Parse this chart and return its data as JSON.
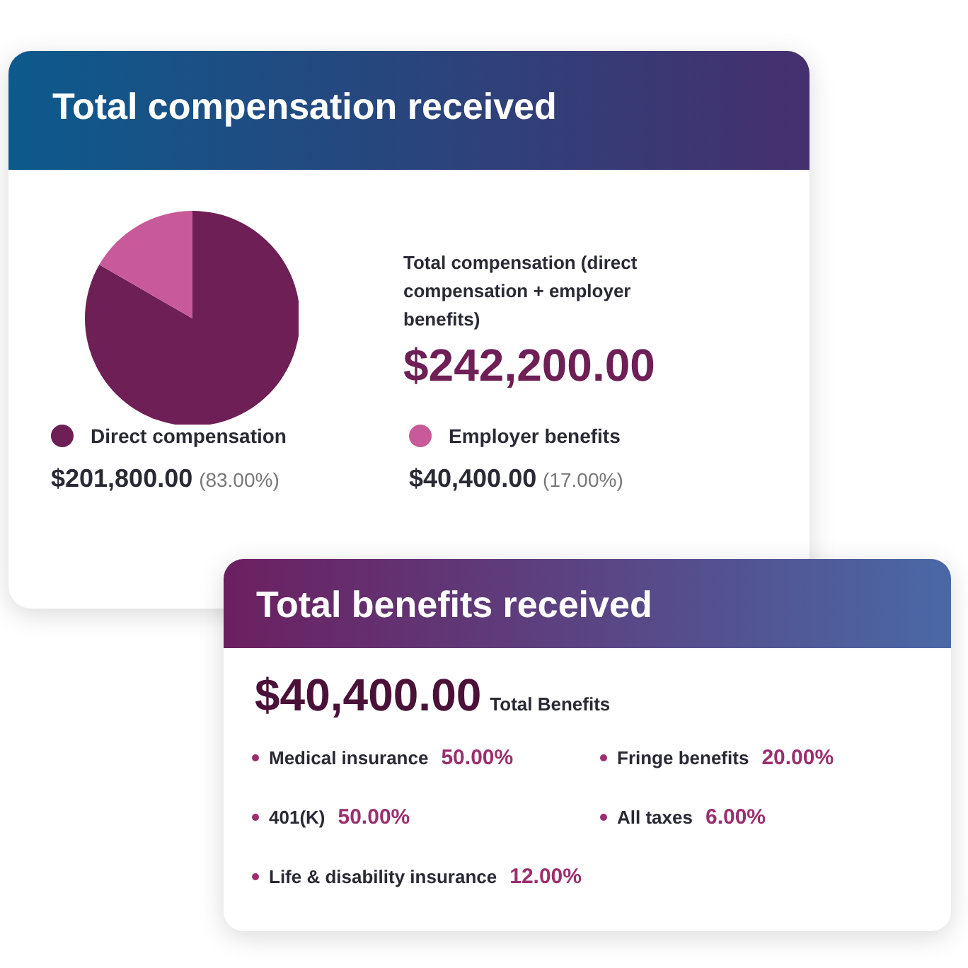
{
  "chart_data": [
    {
      "type": "pie",
      "title": "Total compensation received",
      "categories": [
        "Direct compensation",
        "Employer benefits"
      ],
      "values": [
        201800,
        40400
      ],
      "colors": [
        "#6e1f55",
        "#c85a9a"
      ],
      "value_labels": [
        "$201,800.00 (83.00%)",
        "$40,400.00 (17.00%)"
      ],
      "legend": "bottom",
      "annotations": [
        "Total compensation (direct compensation + employer benefits)",
        "$242,200.00"
      ]
    },
    {
      "type": "other",
      "title": "Total benefits received",
      "annotations": [
        "$40,400.00",
        "Total Benefits"
      ],
      "categories": [
        "Medical insurance",
        "Fringe benefits",
        "401(K)",
        "All taxes",
        "Life & disability insurance"
      ],
      "value_labels": [
        "50.00%",
        "20.00%",
        "50.00%",
        "6.00%",
        "12.00%"
      ]
    }
  ]
}
